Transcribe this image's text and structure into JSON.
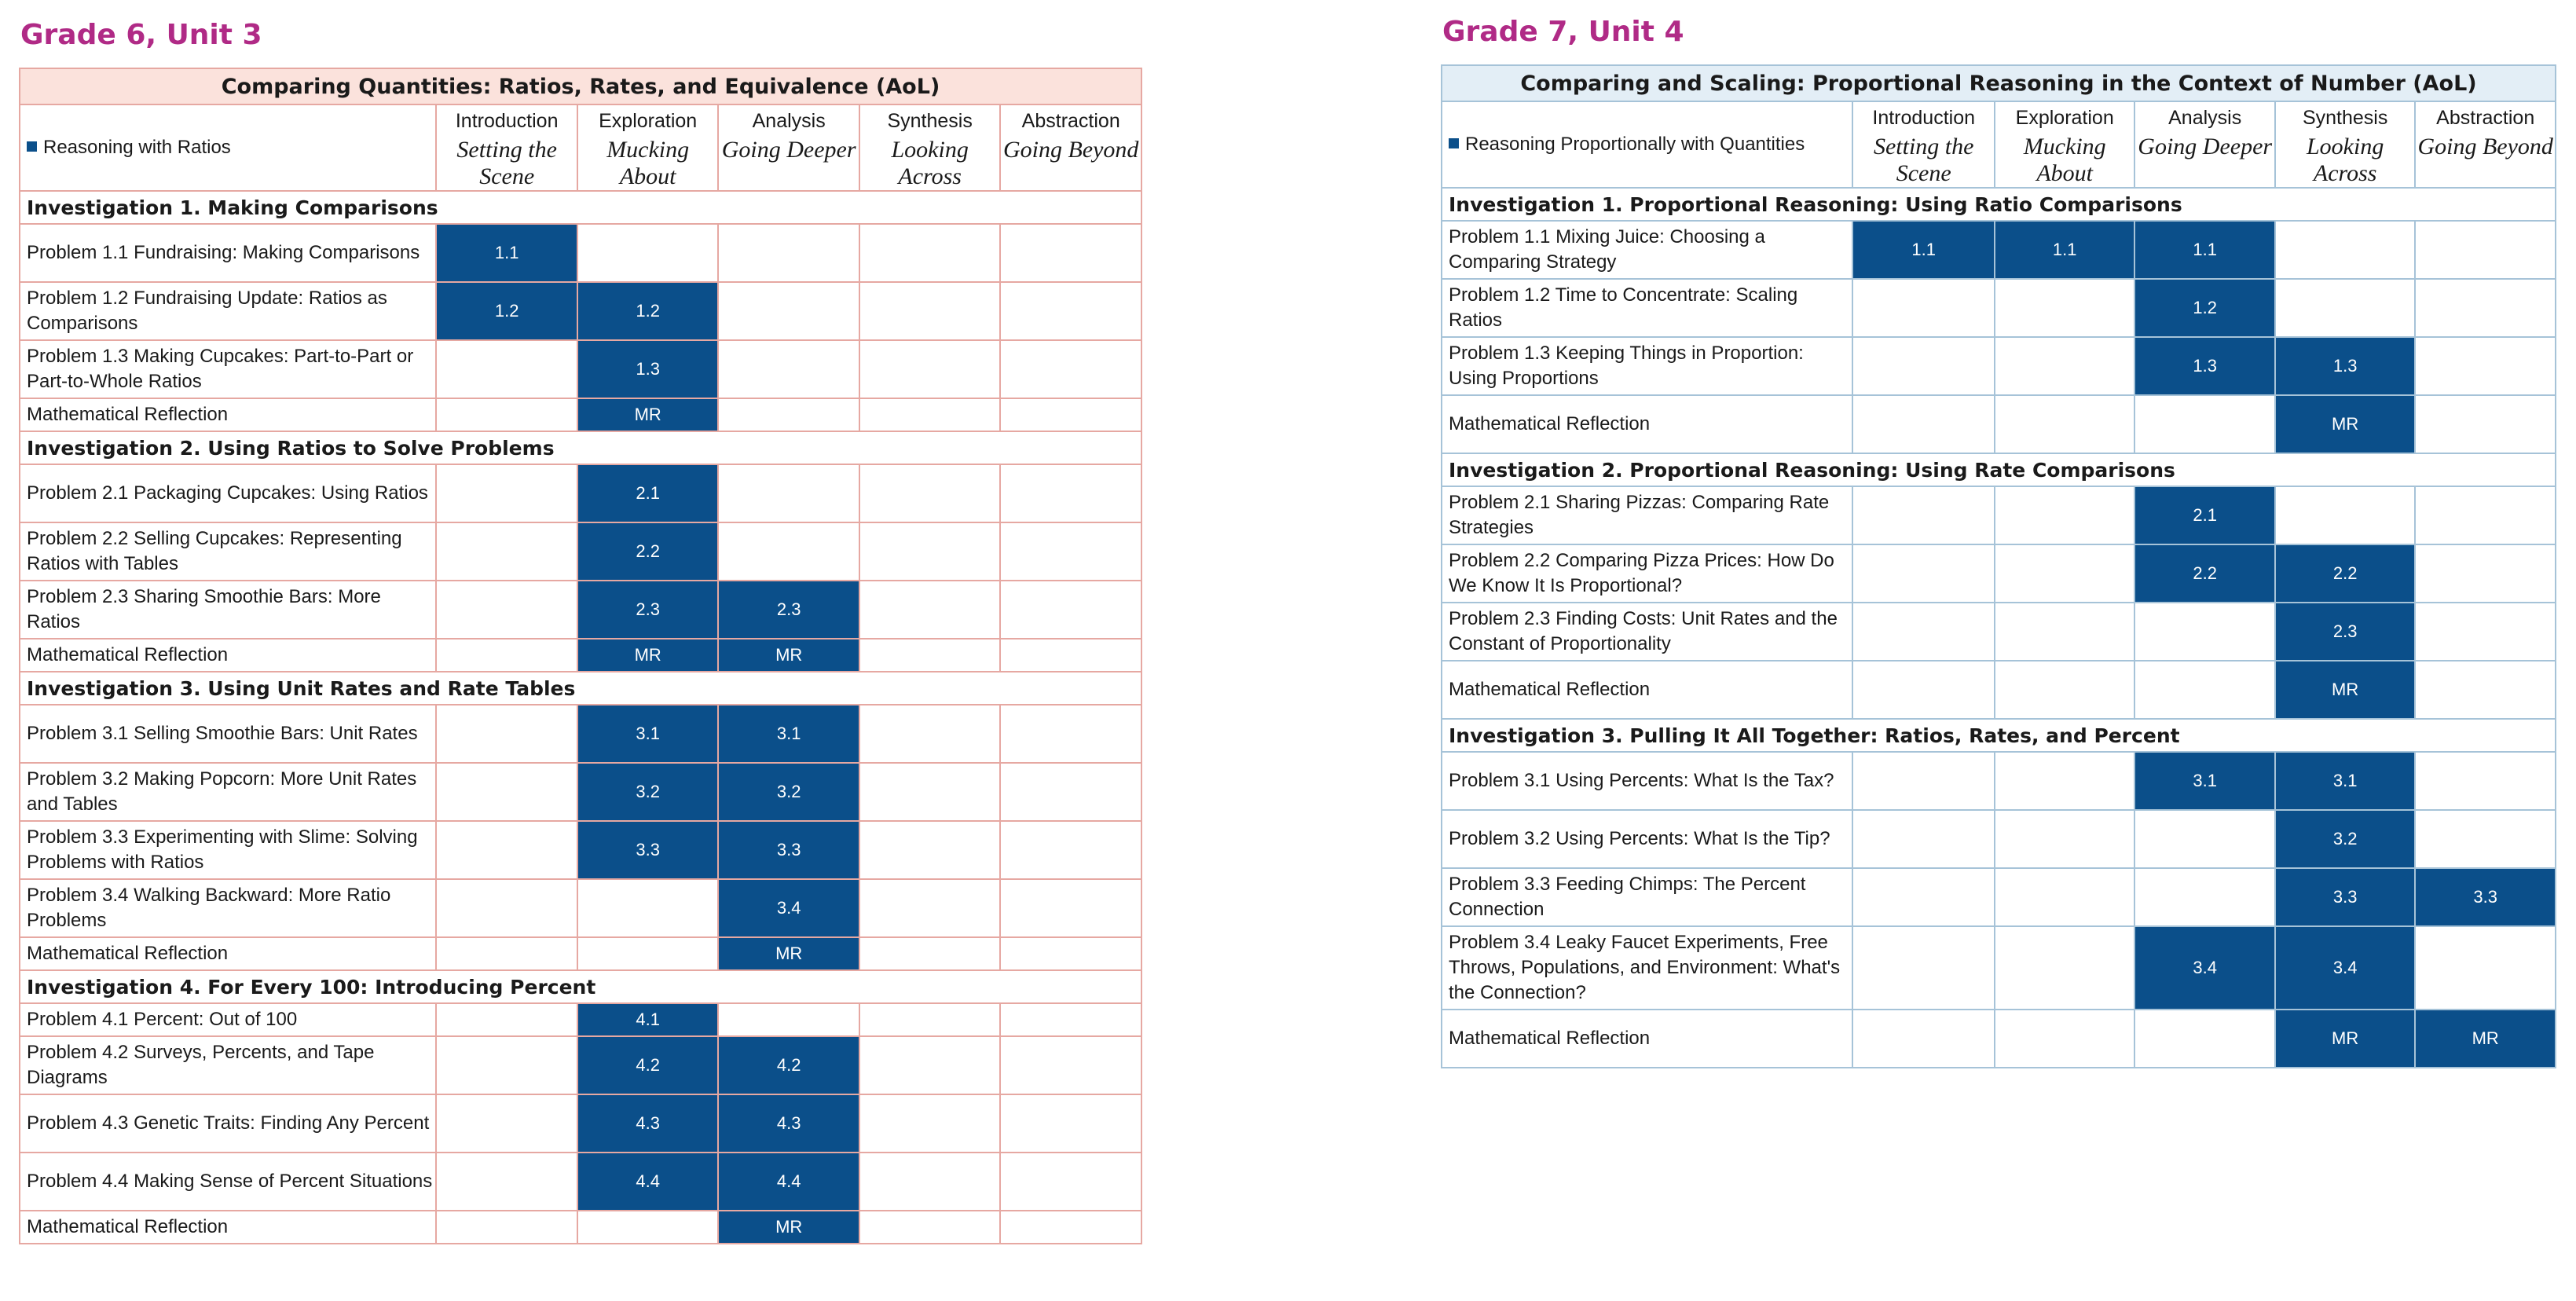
{
  "colors": {
    "grade6_title": "#b02a86",
    "grade7_title": "#b02a86",
    "filled": "#0b4f8a"
  },
  "left": {
    "grade_title": "Grade 6, Unit 3",
    "table_title": "Comparing Quantities: Ratios, Rates, and Equivalence (AoL)",
    "legend": "Reasoning with Ratios",
    "columns": [
      {
        "name": "Introduction",
        "stage": "Setting the Scene"
      },
      {
        "name": "Exploration",
        "stage": "Mucking About"
      },
      {
        "name": "Analysis",
        "stage": "Going Deeper"
      },
      {
        "name": "Synthesis",
        "stage": "Looking Across"
      },
      {
        "name": "Abstraction",
        "stage": "Going Beyond"
      }
    ],
    "investigations": [
      {
        "title": "Investigation 1.  Making Comparisons",
        "rows": [
          {
            "label": "Problem 1.1  Fundraising: Making Comparisons",
            "cells": [
              "1.1",
              "",
              "",
              "",
              ""
            ],
            "kind": "p1"
          },
          {
            "label": "Problem 1.2  Fundraising Update: Ratios as Comparisons",
            "cells": [
              "1.2",
              "1.2",
              "",
              "",
              ""
            ],
            "kind": "p1"
          },
          {
            "label": "Problem 1.3  Making Cupcakes: Part-to-Part or Part-to-Whole Ratios",
            "cells": [
              "",
              "1.3",
              "",
              "",
              ""
            ],
            "kind": "p1"
          },
          {
            "label": "Mathematical Reflection",
            "cells": [
              "",
              "MR",
              "",
              "",
              ""
            ],
            "kind": "mr1"
          }
        ]
      },
      {
        "title": "Investigation 2.  Using Ratios to Solve Problems",
        "rows": [
          {
            "label": "Problem 2.1  Packaging Cupcakes: Using Ratios",
            "cells": [
              "",
              "2.1",
              "",
              "",
              ""
            ],
            "kind": "p1"
          },
          {
            "label": "Problem 2.2  Selling Cupcakes: Representing Ratios with Tables",
            "cells": [
              "",
              "2.2",
              "",
              "",
              ""
            ],
            "kind": "p1"
          },
          {
            "label": "Problem 2.3  Sharing Smoothie Bars: More Ratios",
            "cells": [
              "",
              "2.3",
              "2.3",
              "",
              ""
            ],
            "kind": "p1"
          },
          {
            "label": "Mathematical Reflection",
            "cells": [
              "",
              "MR",
              "MR",
              "",
              ""
            ],
            "kind": "mr1"
          }
        ]
      },
      {
        "title": "Investigation 3.  Using Unit Rates and Rate Tables",
        "rows": [
          {
            "label": "Problem 3.1  Selling Smoothie Bars: Unit Rates",
            "cells": [
              "",
              "3.1",
              "3.1",
              "",
              ""
            ],
            "kind": "p1"
          },
          {
            "label": "Problem 3.2  Making Popcorn: More Unit Rates and Tables",
            "cells": [
              "",
              "3.2",
              "3.2",
              "",
              ""
            ],
            "kind": "p1"
          },
          {
            "label": "Problem 3.3  Experimenting with Slime: Solving Problems with Ratios",
            "cells": [
              "",
              "3.3",
              "3.3",
              "",
              ""
            ],
            "kind": "p1"
          },
          {
            "label": "Problem 3.4  Walking Backward: More Ratio Problems",
            "cells": [
              "",
              "",
              "3.4",
              "",
              ""
            ],
            "kind": "p1"
          },
          {
            "label": "Mathematical Reflection",
            "cells": [
              "",
              "",
              "MR",
              "",
              ""
            ],
            "kind": "mr1"
          }
        ]
      },
      {
        "title": "Investigation 4.  For Every 100: Introducing Percent",
        "rows": [
          {
            "label": "Problem 4.1  Percent: Out of 100",
            "cells": [
              "",
              "4.1",
              "",
              "",
              ""
            ],
            "kind": "mr1"
          },
          {
            "label": "Problem 4.2  Surveys, Percents, and Tape Diagrams",
            "cells": [
              "",
              "4.2",
              "4.2",
              "",
              ""
            ],
            "kind": "p1"
          },
          {
            "label": "Problem 4.3  Genetic Traits: Finding Any Percent",
            "cells": [
              "",
              "4.3",
              "4.3",
              "",
              ""
            ],
            "kind": "p1"
          },
          {
            "label": "Problem 4.4  Making Sense of Percent Situations",
            "cells": [
              "",
              "4.4",
              "4.4",
              "",
              ""
            ],
            "kind": "p1"
          },
          {
            "label": "Mathematical Reflection",
            "cells": [
              "",
              "",
              "MR",
              "",
              ""
            ],
            "kind": "mr1"
          }
        ]
      }
    ]
  },
  "right": {
    "grade_title": "Grade 7, Unit 4",
    "table_title": "Comparing and Scaling: Proportional Reasoning in the Context of Number (AoL)",
    "legend": "Reasoning Proportionally with Quantities",
    "columns": [
      {
        "name": "Introduction",
        "stage": "Setting the Scene"
      },
      {
        "name": "Exploration",
        "stage": "Mucking About"
      },
      {
        "name": "Analysis",
        "stage": "Going Deeper"
      },
      {
        "name": "Synthesis",
        "stage": "Looking Across"
      },
      {
        "name": "Abstraction",
        "stage": "Going Beyond"
      }
    ],
    "investigations": [
      {
        "title": "Investigation 1. Proportional Reasoning: Using Ratio Comparisons",
        "rows": [
          {
            "label": "Problem 1.1  Mixing Juice: Choosing a Comparing Strategy",
            "cells": [
              "1.1",
              "1.1",
              "1.1",
              "",
              ""
            ],
            "kind": "p1"
          },
          {
            "label": "Problem 1.2  Time to Concentrate: Scaling Ratios",
            "cells": [
              "",
              "",
              "1.2",
              "",
              ""
            ],
            "kind": "p1"
          },
          {
            "label": "Problem 1.3  Keeping Things in Proportion: Using Proportions",
            "cells": [
              "",
              "",
              "1.3",
              "1.3",
              ""
            ],
            "kind": "p1"
          },
          {
            "label": "Mathematical Reflection",
            "cells": [
              "",
              "",
              "",
              "MR",
              ""
            ],
            "kind": "mr2"
          }
        ]
      },
      {
        "title": "Investigation 2. Proportional Reasoning: Using Rate Comparisons",
        "rows": [
          {
            "label": "Problem 2.1  Sharing Pizzas: Comparing Rate Strategies",
            "cells": [
              "",
              "",
              "2.1",
              "",
              ""
            ],
            "kind": "p1"
          },
          {
            "label": "Problem 2.2  Comparing Pizza Prices: How Do We Know It Is Proportional?",
            "cells": [
              "",
              "",
              "2.2",
              "2.2",
              ""
            ],
            "kind": "p1"
          },
          {
            "label": "Problem 2.3  Finding Costs: Unit Rates and the Constant of Proportionality",
            "cells": [
              "",
              "",
              "",
              "2.3",
              ""
            ],
            "kind": "p1"
          },
          {
            "label": "Mathematical Reflection",
            "cells": [
              "",
              "",
              "",
              "MR",
              ""
            ],
            "kind": "mr2"
          }
        ]
      },
      {
        "title": "Investigation 3. Pulling It All Together: Ratios, Rates, and Percent",
        "rows": [
          {
            "label": "Problem 3.1  Using Percents: What Is the Tax?",
            "cells": [
              "",
              "",
              "3.1",
              "3.1",
              ""
            ],
            "kind": "p1"
          },
          {
            "label": "Problem 3.2  Using Percents: What Is the Tip?",
            "cells": [
              "",
              "",
              "",
              "3.2",
              ""
            ],
            "kind": "p1"
          },
          {
            "label": "Problem 3.3  Feeding Chimps: The Percent Connection",
            "cells": [
              "",
              "",
              "",
              "3.3",
              "3.3"
            ],
            "kind": "p1"
          },
          {
            "label": "Problem 3.4  Leaky Faucet Experiments, Free Throws, Populations, and Environment: What's the Connection?",
            "cells": [
              "",
              "",
              "3.4",
              "3.4",
              ""
            ],
            "kind": "p2"
          },
          {
            "label": "Mathematical Reflection",
            "cells": [
              "",
              "",
              "",
              "MR",
              "MR"
            ],
            "kind": "mr2"
          }
        ]
      }
    ]
  }
}
